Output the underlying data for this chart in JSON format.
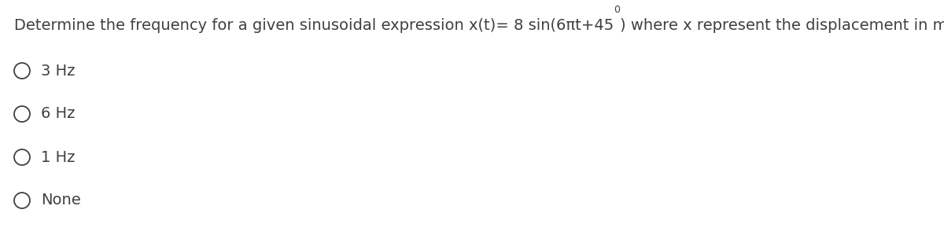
{
  "question_prefix": "Determine the frequency for a given sinusoidal expression x(t)= 8 sin(6",
  "question_pi": "π",
  "question_middle": "t+45",
  "question_superscript": "0",
  "question_suffix": ") where x represent the displacement in m.",
  "options": [
    "3 Hz",
    "6 Hz",
    "1 Hz",
    "None"
  ],
  "text_color": "#404040",
  "background_color": "#ffffff",
  "font_size_question": 14.0,
  "font_size_options": 14.0,
  "font_size_superscript": 9.0
}
